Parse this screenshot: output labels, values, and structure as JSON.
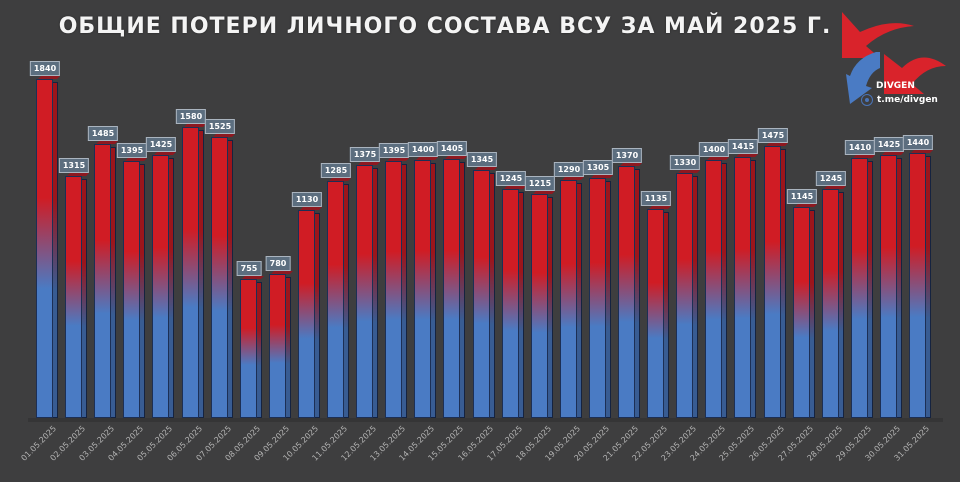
{
  "header": {
    "title": "ОБЩИЕ ПОТЕРИ ЛИЧНОГО СОСТАВА ВСУ ЗА МАЙ 2025 Г."
  },
  "branding": {
    "name": "DIVGEN",
    "channel": "t.me/divgen",
    "logo_icon": "arrows-logo-icon",
    "channel_icon": "telegram-icon"
  },
  "colors": {
    "background": "#3e3e3f",
    "bar_top": "#d01c24",
    "bar_bottom": "#4a7bc4",
    "label_bg": "#5c6e7f"
  },
  "chart_data": {
    "type": "bar",
    "title": "ОБЩИЕ ПОТЕРИ ЛИЧНОГО СОСТАВА ВСУ ЗА МАЙ 2025 Г.",
    "xlabel": "",
    "ylabel": "",
    "style": "3d-column, red-to-blue vertical gradient, data labels on top",
    "grid": false,
    "legend": null,
    "categories": [
      "01.05.2025",
      "02.05.2025",
      "03.05.2025",
      "04.05.2025",
      "05.05.2025",
      "06.05.2025",
      "07.05.2025",
      "08.05.2025",
      "09.05.2025",
      "10.05.2025",
      "11.05.2025",
      "12.05.2025",
      "13.05.2025",
      "14.05.2025",
      "15.05.2025",
      "16.05.2025",
      "17.05.2025",
      "18.05.2025",
      "19.05.2025",
      "20.05.2025",
      "21.05.2025",
      "22.05.2025",
      "23.05.2025",
      "24.05.2025",
      "25.05.2025",
      "26.05.2025",
      "27.05.2025",
      "28.05.2025",
      "29.05.2025",
      "30.05.2025",
      "31.05.2025"
    ],
    "values": [
      1840,
      1315,
      1485,
      1395,
      1425,
      1580,
      1525,
      755,
      780,
      1130,
      1285,
      1375,
      1395,
      1400,
      1405,
      1345,
      1245,
      1215,
      1290,
      1305,
      1370,
      1135,
      1330,
      1400,
      1415,
      1475,
      1145,
      1245,
      1410,
      1425,
      1440
    ],
    "ylim": [
      0,
      1840
    ]
  }
}
